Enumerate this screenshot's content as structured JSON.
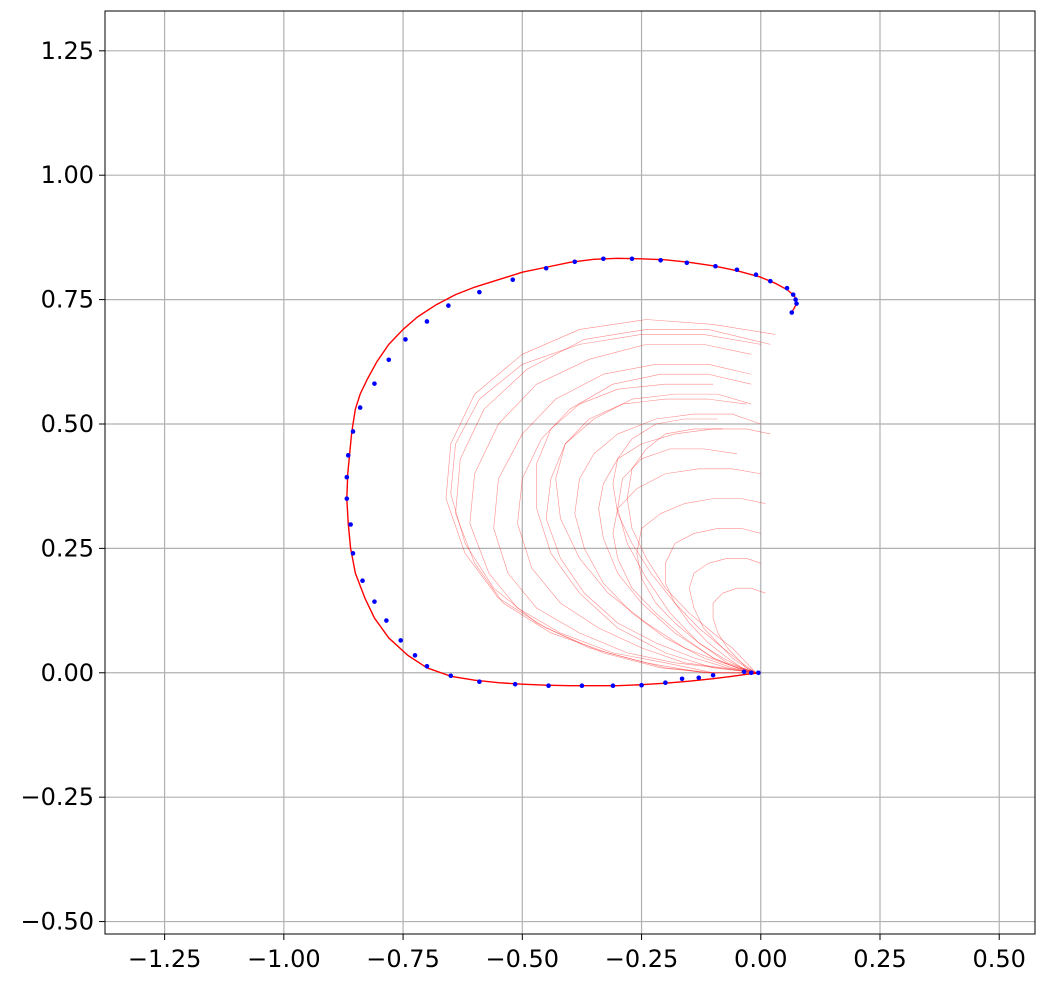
{
  "chart_data": {
    "type": "line",
    "title": "",
    "xlabel": "",
    "ylabel": "",
    "xlim": [
      -1.375,
      0.575
    ],
    "ylim": [
      -0.525,
      1.33
    ],
    "grid": true,
    "legend": "none",
    "xticks": [
      -1.25,
      -1.0,
      -0.75,
      -0.5,
      -0.25,
      0.0,
      0.25,
      0.5
    ],
    "xtick_labels": [
      "−1.25",
      "−1.00",
      "−0.75",
      "−0.50",
      "−0.25",
      "0.00",
      "0.25",
      "0.50"
    ],
    "yticks": [
      -0.5,
      -0.25,
      0.0,
      0.25,
      0.5,
      0.75,
      1.0,
      1.25
    ],
    "ytick_labels": [
      "−0.50",
      "−0.25",
      "0.00",
      "0.25",
      "0.50",
      "0.75",
      "1.00",
      "1.25"
    ],
    "colors": {
      "main_path": "#ff0000",
      "rollouts": "#ff0000",
      "waypoints": "#0000ff",
      "grid": "#b0b0b0"
    },
    "series": [
      {
        "role": "main-path",
        "x": [
          0.0,
          -0.03,
          -0.06,
          -0.1,
          -0.15,
          -0.2,
          -0.25,
          -0.3,
          -0.35,
          -0.4,
          -0.45,
          -0.5,
          -0.55,
          -0.6,
          -0.65,
          -0.7,
          -0.74,
          -0.78,
          -0.81,
          -0.83,
          -0.85,
          -0.86,
          -0.865,
          -0.868,
          -0.866,
          -0.862,
          -0.858,
          -0.855,
          -0.85,
          -0.84,
          -0.825,
          -0.805,
          -0.78,
          -0.75,
          -0.72,
          -0.68,
          -0.64,
          -0.6,
          -0.55,
          -0.5,
          -0.45,
          -0.4,
          -0.35,
          -0.3,
          -0.25,
          -0.2,
          -0.15,
          -0.1,
          -0.05,
          0.0,
          0.03,
          0.055,
          0.07,
          0.075,
          0.073,
          0.066
        ],
        "y": [
          0.0,
          -0.003,
          -0.007,
          -0.012,
          -0.017,
          -0.021,
          -0.024,
          -0.026,
          -0.026,
          -0.026,
          -0.025,
          -0.023,
          -0.02,
          -0.015,
          -0.007,
          0.01,
          0.035,
          0.07,
          0.11,
          0.15,
          0.2,
          0.25,
          0.3,
          0.35,
          0.4,
          0.44,
          0.48,
          0.5,
          0.53,
          0.56,
          0.59,
          0.625,
          0.66,
          0.69,
          0.715,
          0.74,
          0.76,
          0.775,
          0.79,
          0.805,
          0.815,
          0.825,
          0.831,
          0.833,
          0.832,
          0.83,
          0.825,
          0.818,
          0.808,
          0.795,
          0.783,
          0.77,
          0.758,
          0.748,
          0.738,
          0.726
        ]
      }
    ],
    "waypoints": {
      "x": [
        -0.005,
        -0.02,
        -0.035,
        -0.1,
        -0.13,
        -0.165,
        -0.2,
        -0.25,
        -0.31,
        -0.375,
        -0.445,
        -0.515,
        -0.59,
        -0.65,
        -0.7,
        -0.725,
        -0.755,
        -0.785,
        -0.81,
        -0.835,
        -0.855,
        -0.86,
        -0.868,
        -0.868,
        -0.865,
        -0.855,
        -0.84,
        -0.81,
        -0.78,
        -0.745,
        -0.7,
        -0.655,
        -0.59,
        -0.52,
        -0.45,
        -0.39,
        -0.33,
        -0.27,
        -0.21,
        -0.155,
        -0.095,
        -0.05,
        -0.01,
        0.02,
        0.055,
        0.068,
        0.073,
        0.075,
        0.065
      ],
      "y": [
        0.0,
        0.0,
        0.002,
        -0.005,
        -0.01,
        -0.012,
        -0.02,
        -0.025,
        -0.026,
        -0.026,
        -0.026,
        -0.023,
        -0.018,
        -0.006,
        0.013,
        0.035,
        0.065,
        0.105,
        0.143,
        0.185,
        0.24,
        0.298,
        0.35,
        0.393,
        0.437,
        0.485,
        0.533,
        0.581,
        0.629,
        0.67,
        0.706,
        0.738,
        0.765,
        0.79,
        0.813,
        0.826,
        0.832,
        0.832,
        0.829,
        0.824,
        0.817,
        0.81,
        0.8,
        0.787,
        0.773,
        0.76,
        0.75,
        0.742,
        0.724
      ]
    },
    "rollouts": [
      {
        "x": [
          -0.01,
          -0.05,
          -0.1,
          -0.18,
          -0.25,
          -0.3,
          -0.33,
          -0.34,
          -0.33,
          -0.3,
          -0.25,
          -0.18,
          -0.1,
          -0.03,
          0.02
        ],
        "y": [
          0.0,
          0.01,
          0.03,
          0.08,
          0.14,
          0.2,
          0.27,
          0.33,
          0.38,
          0.43,
          0.46,
          0.48,
          0.49,
          0.49,
          0.48
        ]
      },
      {
        "x": [
          -0.01,
          -0.06,
          -0.12,
          -0.2,
          -0.27,
          -0.33,
          -0.37,
          -0.39,
          -0.38,
          -0.35,
          -0.3,
          -0.22,
          -0.14,
          -0.06,
          0.0
        ],
        "y": [
          0.0,
          0.01,
          0.03,
          0.07,
          0.12,
          0.18,
          0.25,
          0.32,
          0.39,
          0.44,
          0.48,
          0.51,
          0.52,
          0.52,
          0.5
        ]
      },
      {
        "x": [
          -0.01,
          -0.07,
          -0.14,
          -0.22,
          -0.3,
          -0.37,
          -0.42,
          -0.45,
          -0.44,
          -0.41,
          -0.35,
          -0.27,
          -0.18,
          -0.09,
          -0.02
        ],
        "y": [
          0.0,
          0.01,
          0.03,
          0.06,
          0.1,
          0.16,
          0.23,
          0.31,
          0.39,
          0.46,
          0.51,
          0.55,
          0.56,
          0.56,
          0.54
        ]
      },
      {
        "x": [
          -0.01,
          -0.08,
          -0.16,
          -0.25,
          -0.34,
          -0.42,
          -0.48,
          -0.51,
          -0.5,
          -0.46,
          -0.4,
          -0.31,
          -0.21,
          -0.11,
          -0.02
        ],
        "y": [
          0.0,
          0.01,
          0.02,
          0.05,
          0.09,
          0.14,
          0.21,
          0.3,
          0.39,
          0.47,
          0.53,
          0.58,
          0.6,
          0.6,
          0.58
        ]
      },
      {
        "x": [
          -0.01,
          -0.09,
          -0.18,
          -0.28,
          -0.38,
          -0.47,
          -0.53,
          -0.56,
          -0.55,
          -0.5,
          -0.43,
          -0.33,
          -0.22,
          -0.11,
          -0.02
        ],
        "y": [
          0.0,
          0.01,
          0.02,
          0.04,
          0.08,
          0.13,
          0.2,
          0.29,
          0.39,
          0.48,
          0.55,
          0.6,
          0.62,
          0.62,
          0.6
        ]
      },
      {
        "x": [
          -0.01,
          -0.1,
          -0.2,
          -0.31,
          -0.42,
          -0.51,
          -0.57,
          -0.61,
          -0.6,
          -0.55,
          -0.47,
          -0.36,
          -0.24,
          -0.12,
          -0.02
        ],
        "y": [
          0.0,
          0.0,
          0.02,
          0.04,
          0.08,
          0.13,
          0.2,
          0.3,
          0.4,
          0.5,
          0.58,
          0.63,
          0.66,
          0.66,
          0.64
        ]
      },
      {
        "x": [
          -0.01,
          -0.1,
          -0.2,
          -0.32,
          -0.44,
          -0.54,
          -0.6,
          -0.64,
          -0.63,
          -0.58,
          -0.49,
          -0.37,
          -0.24,
          -0.11,
          0.02
        ],
        "y": [
          0.0,
          0.0,
          0.01,
          0.04,
          0.08,
          0.14,
          0.22,
          0.32,
          0.43,
          0.53,
          0.61,
          0.67,
          0.69,
          0.69,
          0.66
        ]
      },
      {
        "x": [
          -0.01,
          -0.11,
          -0.21,
          -0.33,
          -0.45,
          -0.55,
          -0.62,
          -0.66,
          -0.65,
          -0.6,
          -0.5,
          -0.38,
          -0.24,
          -0.1,
          0.03
        ],
        "y": [
          0.0,
          0.0,
          0.01,
          0.04,
          0.09,
          0.15,
          0.24,
          0.35,
          0.46,
          0.56,
          0.64,
          0.69,
          0.71,
          0.7,
          0.68
        ]
      },
      {
        "x": [
          -0.01,
          -0.05,
          -0.1,
          -0.16,
          -0.22,
          -0.27,
          -0.3,
          -0.31,
          -0.3,
          -0.26,
          -0.2,
          -0.13,
          -0.06,
          0.0
        ],
        "y": [
          0.0,
          0.01,
          0.03,
          0.07,
          0.12,
          0.17,
          0.23,
          0.28,
          0.33,
          0.37,
          0.4,
          0.41,
          0.41,
          0.4
        ]
      },
      {
        "x": [
          -0.01,
          -0.04,
          -0.08,
          -0.13,
          -0.18,
          -0.22,
          -0.25,
          -0.26,
          -0.25,
          -0.21,
          -0.16,
          -0.1,
          -0.04,
          0.01
        ],
        "y": [
          0.0,
          0.01,
          0.03,
          0.06,
          0.1,
          0.14,
          0.19,
          0.24,
          0.29,
          0.32,
          0.34,
          0.35,
          0.35,
          0.34
        ]
      },
      {
        "x": [
          -0.01,
          -0.04,
          -0.07,
          -0.11,
          -0.15,
          -0.18,
          -0.2,
          -0.2,
          -0.18,
          -0.14,
          -0.09,
          -0.04,
          0.0
        ],
        "y": [
          0.0,
          0.01,
          0.03,
          0.06,
          0.1,
          0.14,
          0.18,
          0.22,
          0.26,
          0.28,
          0.29,
          0.29,
          0.28
        ]
      },
      {
        "x": [
          -0.01,
          -0.03,
          -0.06,
          -0.09,
          -0.12,
          -0.14,
          -0.15,
          -0.14,
          -0.11,
          -0.07,
          -0.03,
          0.0
        ],
        "y": [
          0.0,
          0.01,
          0.03,
          0.06,
          0.09,
          0.13,
          0.17,
          0.2,
          0.22,
          0.23,
          0.23,
          0.22
        ]
      },
      {
        "x": [
          -0.01,
          -0.03,
          -0.05,
          -0.07,
          -0.09,
          -0.1,
          -0.1,
          -0.08,
          -0.05,
          -0.02,
          0.01
        ],
        "y": [
          0.0,
          0.01,
          0.03,
          0.05,
          0.08,
          0.11,
          0.14,
          0.16,
          0.17,
          0.17,
          0.16
        ]
      },
      {
        "x": [
          -0.01,
          -0.07,
          -0.13,
          -0.19,
          -0.24,
          -0.28,
          -0.3,
          -0.29,
          -0.25,
          -0.19,
          -0.12,
          -0.05
        ],
        "y": [
          0.0,
          0.02,
          0.06,
          0.12,
          0.19,
          0.26,
          0.33,
          0.39,
          0.43,
          0.45,
          0.45,
          0.44
        ]
      },
      {
        "x": [
          -0.01,
          -0.08,
          -0.16,
          -0.24,
          -0.32,
          -0.38,
          -0.42,
          -0.43,
          -0.41,
          -0.36,
          -0.29,
          -0.2,
          -0.11,
          -0.03
        ],
        "y": [
          0.0,
          0.02,
          0.05,
          0.1,
          0.16,
          0.23,
          0.31,
          0.39,
          0.46,
          0.51,
          0.54,
          0.55,
          0.55,
          0.54
        ]
      },
      {
        "x": [
          -0.01,
          -0.1,
          -0.2,
          -0.3,
          -0.38,
          -0.44,
          -0.47,
          -0.47,
          -0.44,
          -0.38,
          -0.3,
          -0.2,
          -0.1
        ],
        "y": [
          0.0,
          0.01,
          0.04,
          0.09,
          0.16,
          0.24,
          0.33,
          0.42,
          0.49,
          0.54,
          0.57,
          0.58,
          0.58
        ]
      },
      {
        "x": [
          -0.01,
          -0.12,
          -0.24,
          -0.36,
          -0.47,
          -0.56,
          -0.62,
          -0.65,
          -0.64,
          -0.59,
          -0.5,
          -0.38,
          -0.25,
          -0.12,
          0.0
        ],
        "y": [
          0.0,
          0.0,
          0.02,
          0.05,
          0.1,
          0.17,
          0.26,
          0.36,
          0.46,
          0.55,
          0.62,
          0.66,
          0.68,
          0.68,
          0.66
        ]
      },
      {
        "x": [
          -0.01,
          -0.04,
          -0.08,
          -0.13,
          -0.18,
          -0.23,
          -0.27,
          -0.3,
          -0.31,
          -0.3,
          -0.27,
          -0.22,
          -0.16,
          -0.09
        ],
        "y": [
          0.0,
          0.02,
          0.05,
          0.09,
          0.14,
          0.2,
          0.26,
          0.32,
          0.38,
          0.43,
          0.47,
          0.5,
          0.51,
          0.51
        ]
      },
      {
        "x": [
          -0.01,
          -0.03,
          -0.06,
          -0.1,
          -0.15,
          -0.2,
          -0.24,
          -0.27,
          -0.28,
          -0.27,
          -0.24,
          -0.2,
          -0.14,
          -0.08
        ],
        "y": [
          0.0,
          0.02,
          0.05,
          0.08,
          0.12,
          0.17,
          0.23,
          0.29,
          0.35,
          0.41,
          0.45,
          0.48,
          0.49,
          0.49
        ]
      }
    ]
  }
}
